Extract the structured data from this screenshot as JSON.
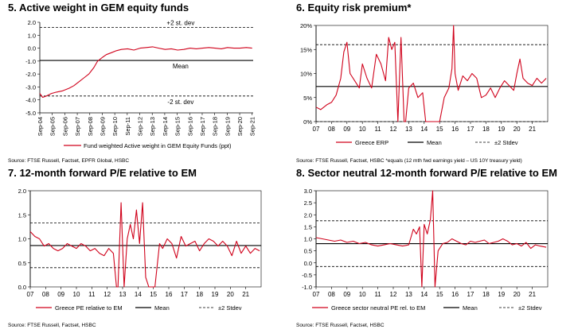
{
  "colors": {
    "series": "#d0021b",
    "mean": "#000000",
    "band": "#000000"
  },
  "chart_data": [
    {
      "id": "c1",
      "type": "line",
      "title": "5. Active weight in GEM equity funds",
      "source": "Source: FTSE Russell, Factset, EPFR Global, HSBC",
      "ylim": [
        -5.0,
        2.0
      ],
      "yticks": [
        "2.0",
        "1.0",
        "0.0",
        "-1.0",
        "-2.0",
        "-3.0",
        "-4.0",
        "-5.0"
      ],
      "ytick_values": [
        2,
        1,
        0,
        -1,
        -2,
        -3,
        -4,
        -5
      ],
      "xlim": [
        2004.67,
        2021.75
      ],
      "xticks": [
        "Sep-04",
        "Sep-05",
        "Sep-06",
        "Sep-07",
        "Sep-08",
        "Sep-09",
        "Sep-10",
        "Sep-11",
        "Sep-12",
        "Sep-13",
        "Sep-14",
        "Sep-15",
        "Sep-16",
        "Sep-17",
        "Sep-18",
        "Sep-19",
        "Sep-20",
        "Sep-21"
      ],
      "xtick_values": [
        2004.67,
        2005.67,
        2006.67,
        2007.67,
        2008.67,
        2009.67,
        2010.67,
        2011.67,
        2012.67,
        2013.67,
        2014.67,
        2015.67,
        2016.67,
        2017.67,
        2018.67,
        2019.67,
        2020.67,
        2021.67
      ],
      "x_rotated": true,
      "series": [
        {
          "name": "Fund weighted Active weight in GEM Equity Funds (ppt)",
          "x": [
            2004.67,
            2004.9,
            2005.2,
            2005.6,
            2006.0,
            2006.5,
            2007.0,
            2007.4,
            2007.8,
            2008.2,
            2008.6,
            2009.0,
            2009.3,
            2009.7,
            2010.0,
            2010.4,
            2010.8,
            2011.2,
            2011.7,
            2012.2,
            2012.7,
            2013.2,
            2013.7,
            2014.2,
            2014.7,
            2015.2,
            2015.7,
            2016.2,
            2016.7,
            2017.2,
            2017.7,
            2018.2,
            2018.7,
            2019.2,
            2019.7,
            2020.2,
            2020.7,
            2021.2,
            2021.67
          ],
          "y": [
            -3.5,
            -3.8,
            -3.7,
            -3.5,
            -3.4,
            -3.3,
            -3.1,
            -2.9,
            -2.6,
            -2.3,
            -2.0,
            -1.5,
            -1.0,
            -0.7,
            -0.5,
            -0.35,
            -0.2,
            -0.1,
            -0.05,
            -0.15,
            0.0,
            0.05,
            0.1,
            0.0,
            -0.1,
            -0.05,
            -0.15,
            -0.1,
            0.0,
            -0.05,
            0.0,
            0.05,
            0.0,
            -0.05,
            0.05,
            0.0,
            0.0,
            0.05,
            0.0
          ]
        }
      ],
      "lines": [
        {
          "name": "+2 st. dev",
          "value": 1.6,
          "style": "dashed",
          "label": "+2 st. dev"
        },
        {
          "name": "Mean",
          "value": -0.95,
          "style": "solid",
          "label": "Mean"
        },
        {
          "name": "-2 st. dev",
          "value": -3.7,
          "style": "dashed",
          "label": "-2 st. dev"
        }
      ],
      "legend": [
        "Fund weighted Active weight in GEM Equity Funds (ppt)"
      ]
    },
    {
      "id": "c2",
      "type": "line",
      "title": "6. Equity risk premium*",
      "source": "Source: FTSE Russell, Factset, HSBC  *equals (12 mth fwd earnings yield – US 10Y treasury yield)",
      "ylim": [
        0,
        20
      ],
      "yticks": [
        "20%",
        "15%",
        "10%",
        "5%",
        "0%"
      ],
      "ytick_values": [
        20,
        15,
        10,
        5,
        0
      ],
      "xlim": [
        2007.0,
        2022.0
      ],
      "xticks": [
        "07",
        "08",
        "09",
        "10",
        "11",
        "12",
        "13",
        "14",
        "15",
        "16",
        "17",
        "18",
        "19",
        "20",
        "21"
      ],
      "xtick_values": [
        2007,
        2008,
        2009,
        2010,
        2011,
        2012,
        2013,
        2014,
        2015,
        2016,
        2017,
        2018,
        2019,
        2020,
        2021
      ],
      "x_rotated": false,
      "series": [
        {
          "name": "Greece ERP",
          "x": [
            2007.0,
            2007.3,
            2007.7,
            2008.0,
            2008.3,
            2008.6,
            2008.8,
            2009.0,
            2009.2,
            2009.5,
            2009.8,
            2010.0,
            2010.3,
            2010.6,
            2010.9,
            2011.2,
            2011.5,
            2011.7,
            2011.9,
            2012.1,
            2012.3,
            2012.5,
            2012.7,
            2012.8,
            2013.0,
            2013.3,
            2013.6,
            2013.9,
            2014.1,
            2014.4,
            2014.7,
            2015.0,
            2015.3,
            2015.6,
            2015.8,
            2015.9,
            2016.0,
            2016.2,
            2016.5,
            2016.8,
            2017.1,
            2017.4,
            2017.7,
            2018.0,
            2018.3,
            2018.6,
            2018.9,
            2019.2,
            2019.5,
            2019.8,
            2020.0,
            2020.2,
            2020.4,
            2020.7,
            2021.0,
            2021.3,
            2021.6,
            2021.9
          ],
          "y": [
            3.0,
            2.5,
            3.5,
            4.0,
            5.5,
            9.0,
            14.5,
            16.5,
            10.0,
            8.5,
            7.0,
            12.0,
            9.0,
            7.0,
            14.0,
            12.0,
            8.5,
            17.5,
            15.0,
            16.5,
            0.0,
            17.5,
            0.0,
            0.0,
            7.0,
            8.0,
            5.0,
            6.0,
            0.0,
            0.0,
            0.0,
            0.0,
            5.0,
            7.0,
            11.0,
            20.0,
            10.0,
            6.5,
            9.5,
            8.5,
            10.0,
            9.0,
            5.0,
            5.5,
            7.0,
            5.0,
            7.0,
            8.5,
            7.5,
            6.5,
            10.0,
            13.0,
            9.0,
            8.0,
            7.5,
            9.0,
            8.0,
            9.0
          ]
        }
      ],
      "lines": [
        {
          "name": "+2 Stdev",
          "value": 16.0,
          "style": "dashed",
          "label": ""
        },
        {
          "name": "Mean",
          "value": 7.3,
          "style": "solid",
          "label": ""
        },
        {
          "name": "-2 Stdev",
          "value": 0.0,
          "style": "dashed",
          "label": ""
        }
      ],
      "legend": [
        "Greece ERP",
        "Mean",
        "±2 Stdev"
      ]
    },
    {
      "id": "c3",
      "type": "line",
      "title": "7. 12-month forward P/E relative to EM",
      "source": "Source: FTSE Russell, Factset, HSBC",
      "ylim": [
        0.0,
        2.0
      ],
      "yticks": [
        "2.0",
        "1.5",
        "1.0",
        "0.5",
        "0.0"
      ],
      "ytick_values": [
        2.0,
        1.5,
        1.0,
        0.5,
        0.0
      ],
      "xlim": [
        2007.0,
        2022.0
      ],
      "xticks": [
        "07",
        "08",
        "09",
        "10",
        "11",
        "12",
        "13",
        "14",
        "15",
        "16",
        "17",
        "18",
        "19",
        "20",
        "21"
      ],
      "xtick_values": [
        2007,
        2008,
        2009,
        2010,
        2011,
        2012,
        2013,
        2014,
        2015,
        2016,
        2017,
        2018,
        2019,
        2020,
        2021
      ],
      "x_rotated": false,
      "series": [
        {
          "name": "Greece PE relative to EM",
          "x": [
            2007.0,
            2007.3,
            2007.6,
            2007.9,
            2008.2,
            2008.5,
            2008.8,
            2009.1,
            2009.4,
            2009.7,
            2010.0,
            2010.3,
            2010.6,
            2010.9,
            2011.2,
            2011.5,
            2011.8,
            2012.1,
            2012.4,
            2012.6,
            2012.7,
            2012.9,
            2013.1,
            2013.3,
            2013.5,
            2013.7,
            2013.9,
            2014.1,
            2014.3,
            2014.5,
            2014.7,
            2014.85,
            2015.1,
            2015.4,
            2015.6,
            2015.9,
            2016.2,
            2016.5,
            2016.8,
            2017.1,
            2017.4,
            2017.7,
            2018.0,
            2018.3,
            2018.6,
            2018.9,
            2019.2,
            2019.5,
            2019.8,
            2020.1,
            2020.4,
            2020.7,
            2021.0,
            2021.3,
            2021.6,
            2021.9
          ],
          "y": [
            1.15,
            1.05,
            1.0,
            0.85,
            0.9,
            0.8,
            0.75,
            0.8,
            0.9,
            0.85,
            0.8,
            0.9,
            0.85,
            0.75,
            0.8,
            0.7,
            0.65,
            0.8,
            0.7,
            0.0,
            0.0,
            1.75,
            0.0,
            1.0,
            1.3,
            1.0,
            1.6,
            0.9,
            1.75,
            0.2,
            0.0,
            0.0,
            0.0,
            0.9,
            0.8,
            1.0,
            0.9,
            0.6,
            1.05,
            0.85,
            0.9,
            0.95,
            0.75,
            0.9,
            1.0,
            0.95,
            0.85,
            0.95,
            0.85,
            0.65,
            0.95,
            0.7,
            0.85,
            0.7,
            0.8,
            0.75
          ]
        }
      ],
      "lines": [
        {
          "name": "+2 Stdev",
          "value": 1.33,
          "style": "dashed",
          "label": ""
        },
        {
          "name": "Mean",
          "value": 0.86,
          "style": "solid",
          "label": ""
        },
        {
          "name": "-2 Stdev",
          "value": 0.4,
          "style": "dashed",
          "label": ""
        }
      ],
      "legend": [
        "Greece PE relative to EM",
        "Mean",
        "±2 Stdev"
      ]
    },
    {
      "id": "c4",
      "type": "line",
      "title": "8. Sector neutral 12-month forward P/E relative to EM",
      "source": "Source: FTSE Russell, Factset, HSBC",
      "ylim": [
        -1.0,
        3.0
      ],
      "yticks": [
        "3.0",
        "2.5",
        "2.0",
        "1.5",
        "1.0",
        "0.5",
        "0.0",
        "-0.5",
        "-1.0"
      ],
      "ytick_values": [
        3.0,
        2.5,
        2.0,
        1.5,
        1.0,
        0.5,
        0.0,
        -0.5,
        -1.0
      ],
      "xlim": [
        2007.0,
        2022.0
      ],
      "xticks": [
        "07",
        "08",
        "09",
        "10",
        "11",
        "12",
        "13",
        "14",
        "15",
        "16",
        "17",
        "18",
        "19",
        "20",
        "21"
      ],
      "xtick_values": [
        2007,
        2008,
        2009,
        2010,
        2011,
        2012,
        2013,
        2014,
        2015,
        2016,
        2017,
        2018,
        2019,
        2020,
        2021
      ],
      "x_rotated": false,
      "series": [
        {
          "name": "Greece sector neutral PE rel. to EM",
          "x": [
            2007.0,
            2007.4,
            2007.8,
            2008.2,
            2008.6,
            2009.0,
            2009.4,
            2009.8,
            2010.2,
            2010.6,
            2011.0,
            2011.4,
            2011.8,
            2012.2,
            2012.6,
            2013.0,
            2013.3,
            2013.5,
            2013.7,
            2013.85,
            2014.0,
            2014.2,
            2014.4,
            2014.55,
            2014.7,
            2014.9,
            2015.2,
            2015.5,
            2015.8,
            2016.1,
            2016.4,
            2016.7,
            2017.0,
            2017.3,
            2017.6,
            2017.9,
            2018.2,
            2018.5,
            2018.8,
            2019.1,
            2019.4,
            2019.7,
            2020.0,
            2020.3,
            2020.6,
            2020.9,
            2021.2,
            2021.5,
            2021.9
          ],
          "y": [
            1.05,
            1.0,
            0.95,
            0.9,
            0.95,
            0.85,
            0.9,
            0.8,
            0.85,
            0.75,
            0.7,
            0.75,
            0.8,
            0.75,
            0.7,
            0.75,
            1.4,
            1.2,
            1.5,
            -1.0,
            1.6,
            1.2,
            1.8,
            3.0,
            -1.0,
            0.5,
            0.8,
            0.85,
            1.0,
            0.9,
            0.8,
            0.75,
            0.9,
            0.85,
            0.9,
            0.95,
            0.8,
            0.85,
            0.9,
            1.0,
            0.9,
            0.75,
            0.8,
            0.7,
            0.85,
            0.6,
            0.75,
            0.7,
            0.65
          ]
        }
      ],
      "lines": [
        {
          "name": "+2 Stdev",
          "value": 1.75,
          "style": "dashed",
          "label": ""
        },
        {
          "name": "Mean",
          "value": 0.8,
          "style": "solid",
          "label": ""
        },
        {
          "name": "-2 Stdev",
          "value": -0.15,
          "style": "dashed",
          "label": ""
        }
      ],
      "legend": [
        "Greece sector neutral PE rel. to EM",
        "Mean",
        "±2 Stdev"
      ]
    }
  ]
}
